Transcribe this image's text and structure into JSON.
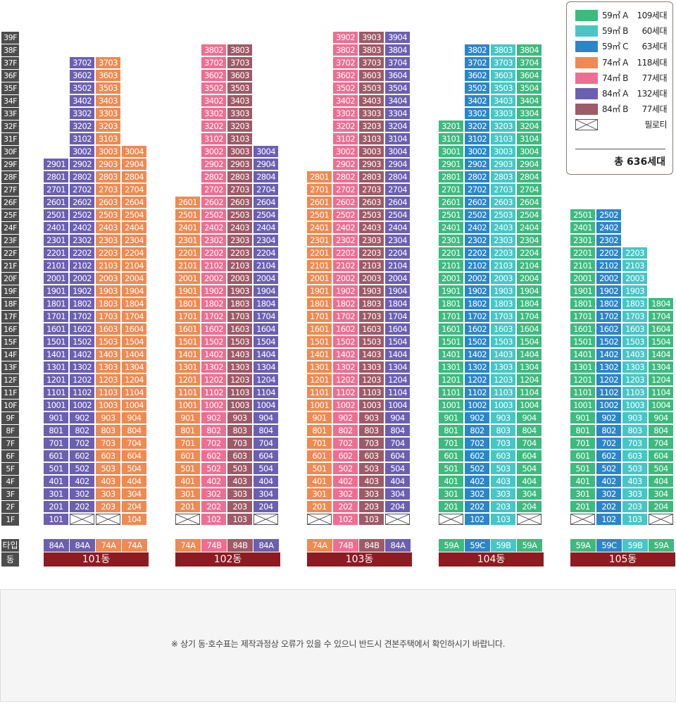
{
  "colors": {
    "59A": "#3dba7e",
    "59B": "#47c6c6",
    "59C": "#2b86c8",
    "74A": "#ee8a52",
    "74B": "#ee6e92",
    "84A": "#6b5fb0",
    "84B": "#9e5a66",
    "floor_label": "#4d4d4d",
    "dong_bar": "#8e1b22"
  },
  "floors": [
    "39F",
    "38F",
    "37F",
    "36F",
    "35F",
    "34F",
    "33F",
    "32F",
    "31F",
    "30F",
    "29F",
    "28F",
    "27F",
    "26F",
    "25F",
    "24F",
    "23F",
    "22F",
    "21F",
    "20F",
    "19F",
    "18F",
    "17F",
    "16F",
    "15F",
    "14F",
    "13F",
    "12F",
    "11F",
    "10F",
    "9F",
    "8F",
    "7F",
    "6F",
    "5F",
    "4F",
    "3F",
    "2F",
    "1F"
  ],
  "row_labels": {
    "type": "타입",
    "dong": "동"
  },
  "legend": {
    "items": [
      {
        "code": "59A",
        "name": "59㎡ A",
        "count": "109세대"
      },
      {
        "code": "59B",
        "name": "59㎡ B",
        "count": "60세대"
      },
      {
        "code": "59C",
        "name": "59㎡ C",
        "count": "63세대"
      },
      {
        "code": "74A",
        "name": "74㎡ A",
        "count": "118세대"
      },
      {
        "code": "74B",
        "name": "74㎡ B",
        "count": "77세대"
      },
      {
        "code": "84A",
        "name": "84㎡ A",
        "count": "132세대"
      },
      {
        "code": "84B",
        "name": "84㎡ B",
        "count": "77세대"
      }
    ],
    "piloti_label": "필로티",
    "total": "총 636세대"
  },
  "buildings": [
    {
      "name": "101동",
      "lines": [
        {
          "line": 1,
          "type": "84A",
          "top_floor": 29,
          "first_floor": "unit"
        },
        {
          "line": 2,
          "type": "84A",
          "top_floor": 37,
          "first_floor": "piloti"
        },
        {
          "line": 3,
          "type": "74A",
          "top_floor": 37,
          "first_floor": "piloti"
        },
        {
          "line": 4,
          "type": "74A",
          "top_floor": 30,
          "first_floor": "unit"
        }
      ]
    },
    {
      "name": "102동",
      "lines": [
        {
          "line": 1,
          "type": "74A",
          "top_floor": 26,
          "first_floor": "piloti"
        },
        {
          "line": 2,
          "type": "74B",
          "top_floor": 38,
          "first_floor": "unit"
        },
        {
          "line": 3,
          "type": "84B",
          "top_floor": 38,
          "first_floor": "unit"
        },
        {
          "line": 4,
          "type": "84A",
          "top_floor": 30,
          "first_floor": "piloti"
        }
      ]
    },
    {
      "name": "103동",
      "lines": [
        {
          "line": 1,
          "type": "74A",
          "top_floor": 28,
          "first_floor": "piloti"
        },
        {
          "line": 2,
          "type": "74B",
          "top_floor": 39,
          "first_floor": "unit"
        },
        {
          "line": 3,
          "type": "84B",
          "top_floor": 39,
          "first_floor": "unit"
        },
        {
          "line": 4,
          "type": "84A",
          "top_floor": 39,
          "first_floor": "piloti"
        }
      ]
    },
    {
      "name": "104동",
      "lines": [
        {
          "line": 1,
          "type": "59A",
          "top_floor": 32,
          "first_floor": "piloti"
        },
        {
          "line": 2,
          "type": "59C",
          "top_floor": 38,
          "first_floor": "unit"
        },
        {
          "line": 3,
          "type": "59B",
          "top_floor": 38,
          "first_floor": "unit"
        },
        {
          "line": 4,
          "type": "59A",
          "top_floor": 38,
          "first_floor": "piloti"
        }
      ]
    },
    {
      "name": "105동",
      "lines": [
        {
          "line": 1,
          "type": "59A",
          "top_floor": 25,
          "first_floor": "piloti"
        },
        {
          "line": 2,
          "type": "59C",
          "top_floor": 25,
          "first_floor": "unit"
        },
        {
          "line": 3,
          "type": "59B",
          "top_floor": 22,
          "first_floor": "unit"
        },
        {
          "line": 4,
          "type": "59A",
          "top_floor": 18,
          "first_floor": "piloti"
        }
      ]
    }
  ],
  "notice": "※ 상기 동·호수표는 제작과정상 오류가 있을 수 있으니 반드시 견본주택에서 확인하시기 바랍니다."
}
